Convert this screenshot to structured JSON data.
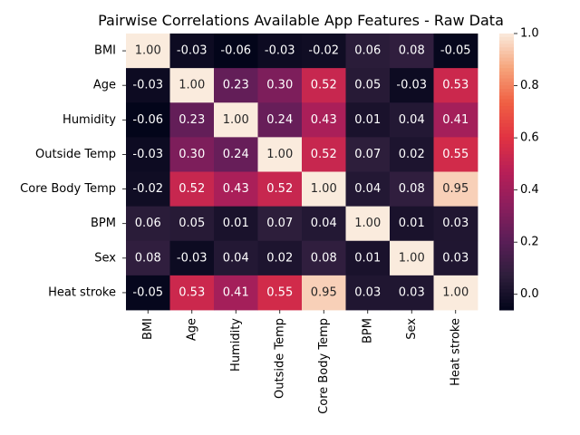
{
  "chart_data": {
    "type": "heatmap",
    "title": "Pairwise Correlations Available App Features - Raw Data",
    "xlabel": "",
    "ylabel": "",
    "row_labels": [
      "BMI",
      "Age",
      "Humidity",
      "Outside Temp",
      "Core Body Temp",
      "BPM",
      "Sex",
      "Heat stroke"
    ],
    "col_labels": [
      "BMI",
      "Age",
      "Humidity",
      "Outside Temp",
      "Core Body Temp",
      "BPM",
      "Sex",
      "Heat stroke"
    ],
    "values": [
      [
        1.0,
        -0.03,
        -0.06,
        -0.03,
        -0.02,
        0.06,
        0.08,
        -0.05
      ],
      [
        -0.03,
        1.0,
        0.23,
        0.3,
        0.52,
        0.05,
        -0.03,
        0.53
      ],
      [
        -0.06,
        0.23,
        1.0,
        0.24,
        0.43,
        0.01,
        0.04,
        0.41
      ],
      [
        -0.03,
        0.3,
        0.24,
        1.0,
        0.52,
        0.07,
        0.02,
        0.55
      ],
      [
        -0.02,
        0.52,
        0.43,
        0.52,
        1.0,
        0.04,
        0.08,
        0.95
      ],
      [
        0.06,
        0.05,
        0.01,
        0.07,
        0.04,
        1.0,
        0.01,
        0.03
      ],
      [
        0.08,
        -0.03,
        0.04,
        0.02,
        0.08,
        0.01,
        1.0,
        0.03
      ],
      [
        -0.05,
        0.53,
        0.41,
        0.55,
        0.95,
        0.03,
        0.03,
        1.0
      ]
    ],
    "value_labels": [
      [
        "1.00",
        "-0.03",
        "-0.06",
        "-0.03",
        "-0.02",
        "0.06",
        "0.08",
        "-0.05"
      ],
      [
        "-0.03",
        "1.00",
        "0.23",
        "0.30",
        "0.52",
        "0.05",
        "-0.03",
        "0.53"
      ],
      [
        "-0.06",
        "0.23",
        "1.00",
        "0.24",
        "0.43",
        "0.01",
        "0.04",
        "0.41"
      ],
      [
        "-0.03",
        "0.30",
        "0.24",
        "1.00",
        "0.52",
        "0.07",
        "0.02",
        "0.55"
      ],
      [
        "-0.02",
        "0.52",
        "0.43",
        "0.52",
        "1.00",
        "0.04",
        "0.08",
        "0.95"
      ],
      [
        "0.06",
        "0.05",
        "0.01",
        "0.07",
        "0.04",
        "1.00",
        "0.01",
        "0.03"
      ],
      [
        "0.08",
        "-0.03",
        "0.04",
        "0.02",
        "0.08",
        "0.01",
        "1.00",
        "0.03"
      ],
      [
        "-0.05",
        "0.53",
        "0.41",
        "0.55",
        "0.95",
        "0.03",
        "0.03",
        "1.00"
      ]
    ],
    "colorbar": {
      "range": [
        -0.06,
        1.0
      ],
      "ticks": [
        0.0,
        0.2,
        0.4,
        0.6,
        0.8,
        1.0
      ],
      "tick_labels": [
        "0.0",
        "0.2",
        "0.4",
        "0.6",
        "0.8",
        "1.0"
      ]
    },
    "colormap": [
      "#03051a",
      "#2e1e3c",
      "#5a1e57",
      "#8b1e5d",
      "#b81f57",
      "#e13342",
      "#f06043",
      "#f6a47b",
      "#faebdd"
    ]
  }
}
